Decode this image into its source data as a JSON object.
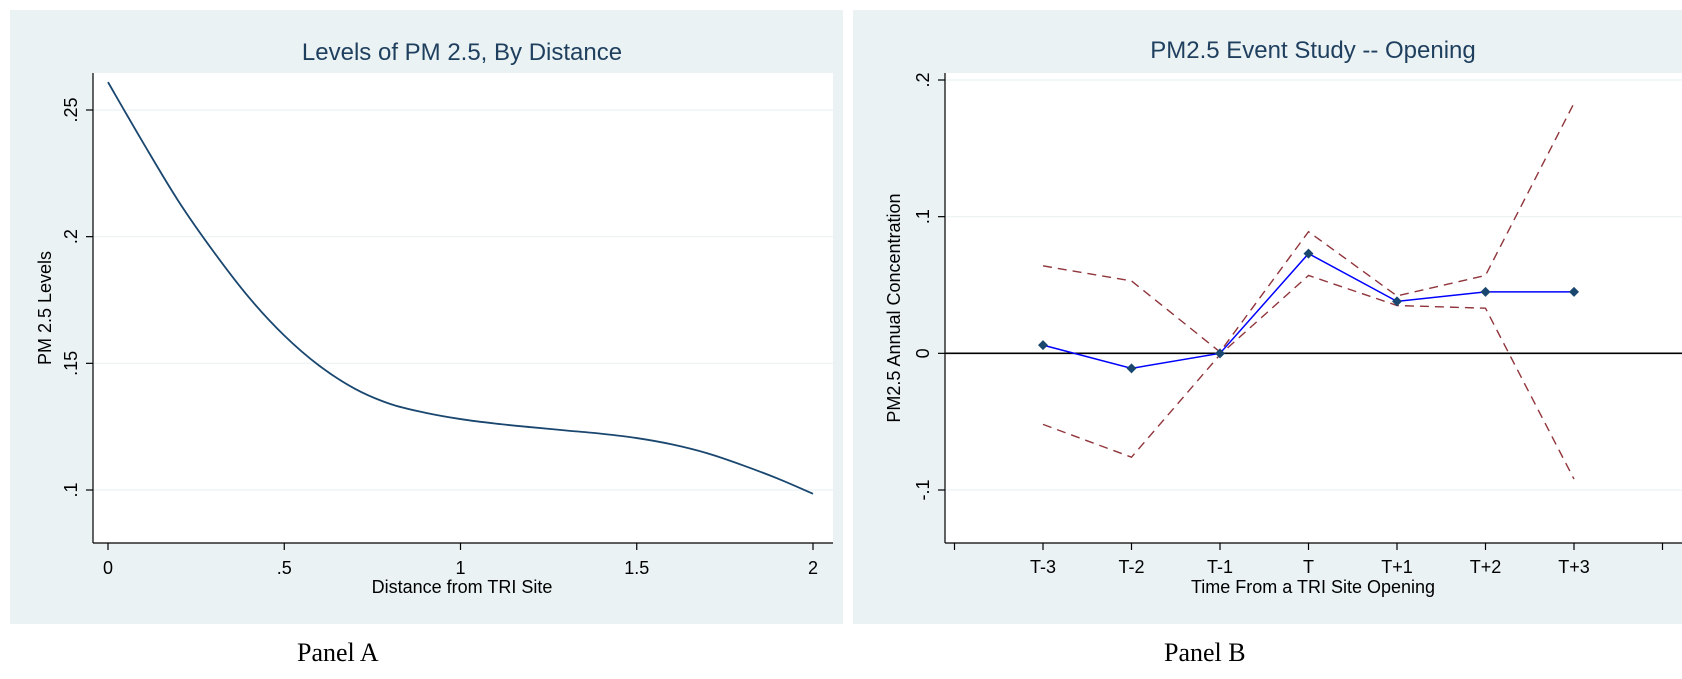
{
  "captions": {
    "a": "Panel A",
    "b": "Panel B"
  },
  "colors": {
    "background": "#eaf2f3",
    "plot": "#ffffff",
    "grid": "#eaf2f3",
    "curve": "#1a476f",
    "estimate": "#0000ff",
    "ci": "#90353b",
    "zero_line": "#000000"
  },
  "chart_data": [
    {
      "type": "line",
      "title": "Levels of PM 2.5, By Distance",
      "xlabel": "Distance from TRI Site",
      "ylabel": "PM 2.5 Levels",
      "xlim": [
        0,
        2
      ],
      "ylim": [
        0.1,
        0.25
      ],
      "xticks": [
        {
          "value": 0,
          "label": "0"
        },
        {
          "value": 0.5,
          "label": ".5"
        },
        {
          "value": 1,
          "label": "1"
        },
        {
          "value": 1.5,
          "label": "1.5"
        },
        {
          "value": 2,
          "label": "2"
        }
      ],
      "yticks": [
        {
          "value": 0.1,
          "label": ".1"
        },
        {
          "value": 0.15,
          "label": ".15"
        },
        {
          "value": 0.2,
          "label": ".2"
        },
        {
          "value": 0.25,
          "label": ".25"
        }
      ],
      "grid": true,
      "series": [
        {
          "x": [
            0,
            0.1,
            0.2,
            0.3,
            0.4,
            0.5,
            0.6,
            0.7,
            0.8,
            0.9,
            1.0,
            1.1,
            1.2,
            1.3,
            1.4,
            1.5,
            1.6,
            1.7,
            1.8,
            1.9,
            2.0
          ],
          "y": [
            0.261,
            0.237,
            0.214,
            0.194,
            0.176,
            0.161,
            0.149,
            0.14,
            0.134,
            0.1305,
            0.128,
            0.1262,
            0.1248,
            0.1235,
            0.1222,
            0.1205,
            0.118,
            0.1145,
            0.1098,
            0.1045,
            0.0985
          ]
        }
      ]
    },
    {
      "type": "line",
      "title": "PM2.5 Event Study -- Opening",
      "xlabel": "Time From a TRI Site Opening",
      "ylabel": "PM2.5 Annual Concentration",
      "categories": [
        "T-3",
        "T-2",
        "T-1",
        "T",
        "T+1",
        "T+2",
        "T+3"
      ],
      "ylim": [
        -0.1,
        0.2
      ],
      "yticks": [
        {
          "value": -0.1,
          "label": "-.1"
        },
        {
          "value": 0,
          "label": "0"
        },
        {
          "value": 0.1,
          "label": ".1"
        },
        {
          "value": 0.2,
          "label": ".2"
        }
      ],
      "grid": true,
      "reference_line": 0,
      "series": [
        {
          "role": "estimate",
          "values": [
            0.006,
            -0.011,
            0.0,
            0.073,
            0.038,
            0.045,
            0.045
          ]
        },
        {
          "role": "upper",
          "values": [
            0.064,
            0.053,
            0.001,
            0.089,
            0.042,
            0.057,
            0.183
          ]
        },
        {
          "role": "lower",
          "values": [
            -0.052,
            -0.076,
            -0.001,
            0.057,
            0.035,
            0.033,
            -0.092
          ]
        }
      ]
    }
  ]
}
